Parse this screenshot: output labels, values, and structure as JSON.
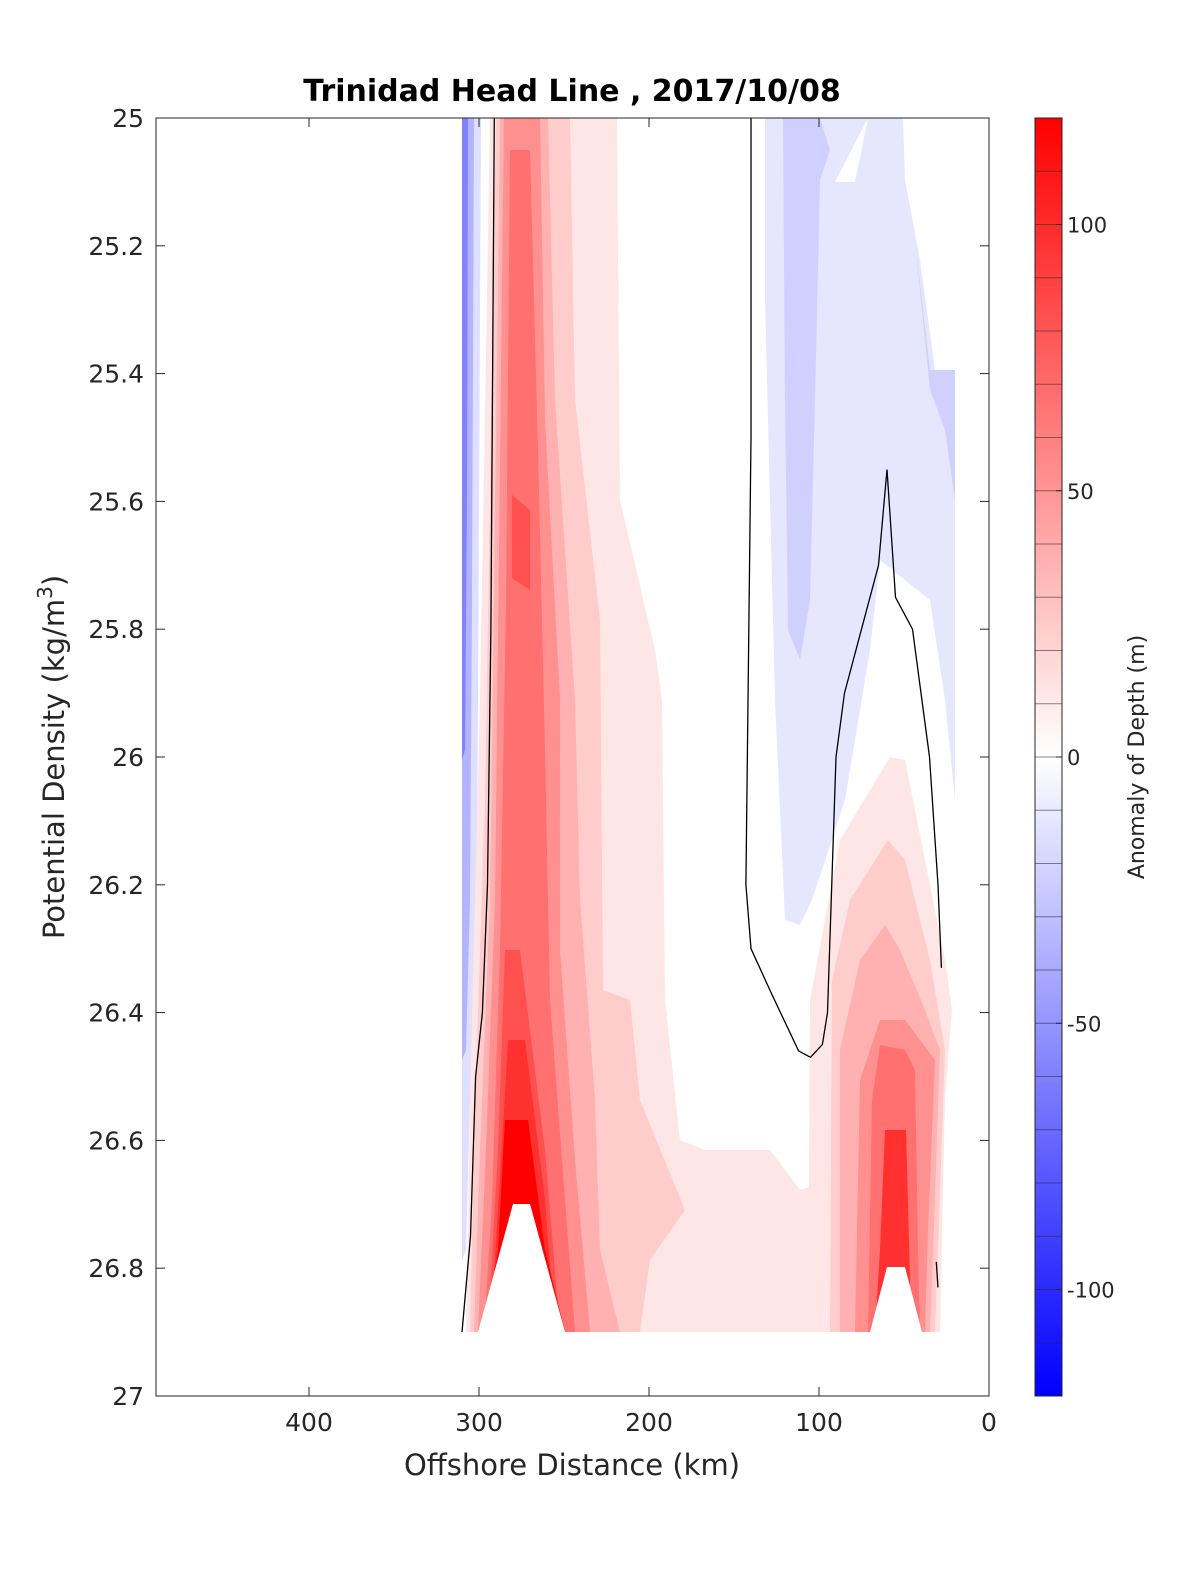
{
  "chart_data": {
    "type": "heatmap",
    "subtype": "filled-contour",
    "title": "Trinidad Head Line , 2017/10/08",
    "xlabel": "Offshore Distance (km)",
    "ylabel": "Potential Density (kg/m",
    "ylabel_sup": "3",
    "ylabel_tail": ")",
    "xlim": [
      490,
      0
    ],
    "x_reversed": true,
    "ylim": [
      25,
      27
    ],
    "y_reversed": true,
    "xticks": [
      400,
      300,
      200,
      100,
      0
    ],
    "xtick_labels": [
      "400",
      "300",
      "200",
      "100",
      "0"
    ],
    "yticks": [
      25,
      25.2,
      25.4,
      25.6,
      25.8,
      26,
      26.2,
      26.4,
      26.6,
      26.8,
      27
    ],
    "ytick_labels": [
      "25",
      "25.2",
      "25.4",
      "25.6",
      "25.8",
      "26",
      "26.2",
      "26.4",
      "26.6",
      "26.8",
      "27"
    ],
    "grid": false,
    "colorbar": {
      "label": "Anomaly of Depth (m)",
      "range": [
        -120,
        120
      ],
      "ticks": [
        100,
        50,
        0,
        -50,
        -100
      ],
      "tick_labels": [
        "100",
        "50",
        "0",
        "-50",
        "-100"
      ],
      "colormap": "blue-white-red",
      "colors": {
        "low": "#0000ff",
        "mid": "#ffffff",
        "high": "#ff0000"
      },
      "level_step": 10
    },
    "fields": [
      {
        "name": "negative nearshore-west band",
        "sign": "negative",
        "peak_value": -40,
        "x_range": [
          310,
          302
        ],
        "y_range": [
          25,
          26.75
        ]
      },
      {
        "name": "positive main core",
        "sign": "positive",
        "peak_value": 115,
        "x_center": 275,
        "y_range": [
          25,
          26.9
        ]
      },
      {
        "name": "positive inshore core",
        "sign": "positive",
        "peak_value": 80,
        "x_center": 55,
        "y_range": [
          26,
          26.9
        ]
      },
      {
        "name": "negative near-surface band",
        "sign": "negative",
        "peak_value": -30,
        "x_range": [
          125,
          20
        ],
        "y_range": [
          25,
          26.3
        ]
      }
    ],
    "zero_contours": [
      {
        "points": [
          [
            310,
            26.9
          ],
          [
            305,
            26.75
          ],
          [
            302,
            26.5
          ],
          [
            298,
            26.4
          ],
          [
            295,
            26.2
          ],
          [
            293,
            25.8
          ],
          [
            292,
            25.4
          ],
          [
            291,
            25.0
          ]
        ]
      },
      {
        "points": [
          [
            140,
            25.0
          ],
          [
            140,
            25.5
          ],
          [
            143,
            26.2
          ],
          [
            140,
            26.3
          ],
          [
            128,
            26.37
          ],
          [
            112,
            26.46
          ],
          [
            105,
            26.47
          ],
          [
            98,
            26.45
          ],
          [
            95,
            26.4
          ],
          [
            90,
            26.0
          ],
          [
            85,
            25.9
          ],
          [
            75,
            25.8
          ],
          [
            65,
            25.7
          ],
          [
            60,
            25.55
          ],
          [
            55,
            25.75
          ],
          [
            45,
            25.8
          ],
          [
            35,
            26.0
          ],
          [
            30,
            26.2
          ],
          [
            28,
            26.33
          ]
        ]
      },
      {
        "points": [
          [
            31,
            26.79
          ],
          [
            30,
            26.83
          ]
        ]
      }
    ]
  }
}
